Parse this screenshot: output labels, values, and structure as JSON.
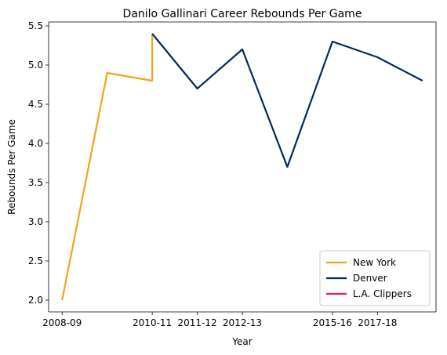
{
  "chart_data": {
    "type": "line",
    "title": "Danilo Gallinari Career Rebounds Per Game",
    "xlabel": "Year",
    "ylabel": "Rebounds Per Game",
    "x_tick_labels": [
      "2008-09",
      "2010-11",
      "2011-12",
      "2012-13",
      "2015-16",
      "2017-18"
    ],
    "x_tick_positions": [
      0,
      2,
      3,
      4,
      6,
      7
    ],
    "xlim": [
      -0.3,
      8.3
    ],
    "ylim": [
      1.85,
      5.55
    ],
    "y_ticks": [
      "2.0",
      "2.5",
      "3.0",
      "3.5",
      "4.0",
      "4.5",
      "5.0",
      "5.5"
    ],
    "grid": false,
    "legend_position": "bottom-right",
    "series": [
      {
        "name": "New York",
        "color": "#f5a11c",
        "x": [
          0,
          1,
          2,
          2
        ],
        "y": [
          2.0,
          4.9,
          4.8,
          5.4
        ]
      },
      {
        "name": "Denver",
        "color": "#002a5c",
        "x": [
          2,
          3,
          4,
          5,
          6,
          7,
          8
        ],
        "y": [
          5.4,
          4.7,
          5.2,
          3.7,
          5.3,
          5.1,
          4.8
        ]
      },
      {
        "name": "L.A. Clippers",
        "color": "#e0234e",
        "x": [],
        "y": []
      }
    ]
  }
}
